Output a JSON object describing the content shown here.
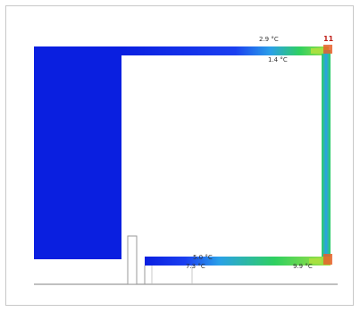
{
  "diagram": {
    "type": "thermal-simulation-section",
    "colors": {
      "cold": "#0a1fe0",
      "cool": "#2aa0e8",
      "mid": "#2fd060",
      "warm": "#a8e040",
      "hot": "#e8602a",
      "outline": "#9a9a9a"
    },
    "labels": {
      "top_left_upper": "2.9 °C",
      "top_left_lower": "1.4 °C",
      "top_right": "11",
      "bottom_left_upper": "5.0 °C",
      "bottom_left_lower": "7.3 °C",
      "bottom_right": "9.9 °C"
    }
  }
}
